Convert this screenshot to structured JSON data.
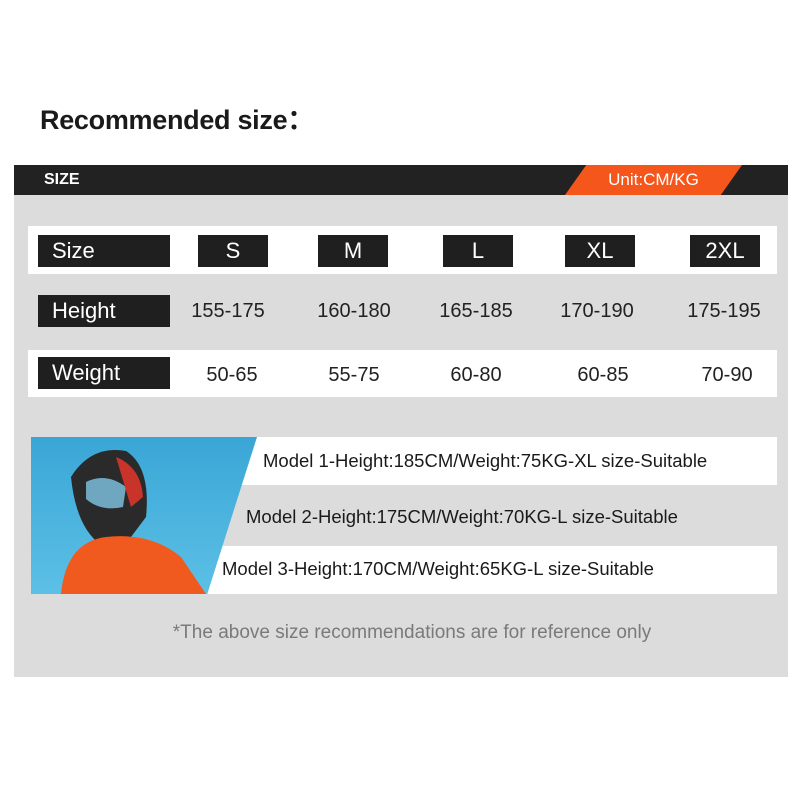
{
  "title": "Recommended size：",
  "header": {
    "label": "SIZE",
    "unit": "Unit:CM/KG",
    "accent": "#f4561c"
  },
  "table": {
    "row_labels": [
      "Size",
      "Height",
      "Weight"
    ],
    "sizes": [
      "S",
      "M",
      "L",
      "XL",
      "2XL"
    ],
    "height": [
      "155-175",
      "160-180",
      "165-185",
      "170-190",
      "175-195"
    ],
    "weight": [
      "50-65",
      "55-75",
      "60-80",
      "60-85",
      "70-90"
    ]
  },
  "models": [
    "Model 1-Height:185CM/Weight:75KG-XL size-Suitable",
    "Model 2-Height:175CM/Weight:70KG-L size-Suitable",
    "Model 3-Height:170CM/Weight:65KG-L size-Suitable"
  ],
  "note": "*The above size recommendations are for reference only"
}
